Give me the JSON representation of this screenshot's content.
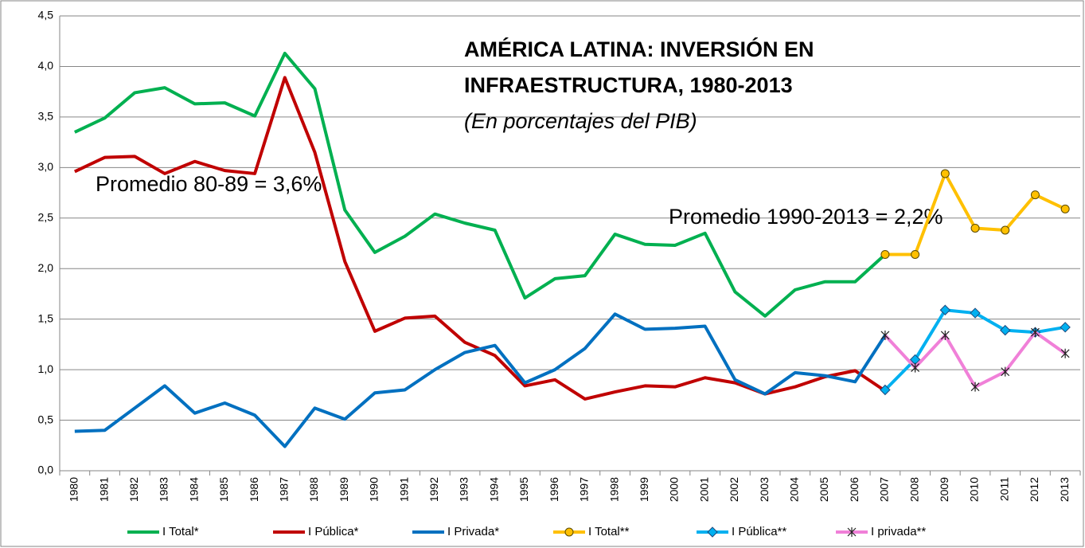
{
  "chart_data": {
    "type": "line",
    "title_lines": [
      "AMÉRICA LATINA: INVERSIÓN EN",
      "INFRAESTRUCTURA, 1980-2013"
    ],
    "subtitle": "(En porcentajes del PIB)",
    "annotations": [
      "Promedio 80-89 = 3,6%",
      "Promedio 1990-2013 = 2,2%"
    ],
    "categories": [
      "1980",
      "1981",
      "1982",
      "1983",
      "1984",
      "1985",
      "1986",
      "1987",
      "1988",
      "1989",
      "1990",
      "1991",
      "1992",
      "1993",
      "1994",
      "1995",
      "1996",
      "1997",
      "1998",
      "1999",
      "2000",
      "2001",
      "2002",
      "2003",
      "2004",
      "2005",
      "2006",
      "2007",
      "2008",
      "2009",
      "2010",
      "2011",
      "2012",
      "2013"
    ],
    "series": [
      {
        "name": "I Total*",
        "color": "#00b050",
        "marker": "none",
        "values": [
          3.35,
          3.49,
          3.74,
          3.79,
          3.63,
          3.64,
          3.51,
          4.13,
          3.78,
          2.58,
          2.16,
          2.32,
          2.54,
          2.45,
          2.38,
          1.71,
          1.9,
          1.93,
          2.34,
          2.24,
          2.23,
          2.35,
          1.77,
          1.53,
          1.79,
          1.87,
          1.87,
          2.14,
          null,
          null,
          null,
          null,
          null,
          null
        ]
      },
      {
        "name": "I Pública*",
        "color": "#c00000",
        "marker": "none",
        "values": [
          2.96,
          3.1,
          3.11,
          2.94,
          3.06,
          2.97,
          2.94,
          3.89,
          3.15,
          2.07,
          1.38,
          1.51,
          1.53,
          1.27,
          1.14,
          0.84,
          0.9,
          0.71,
          0.78,
          0.84,
          0.83,
          0.92,
          0.87,
          0.76,
          0.83,
          0.93,
          0.99,
          0.79,
          null,
          null,
          null,
          null,
          null,
          null
        ]
      },
      {
        "name": "I Privada*",
        "color": "#0070c0",
        "marker": "none",
        "values": [
          0.39,
          0.4,
          0.62,
          0.84,
          0.57,
          0.67,
          0.55,
          0.24,
          0.62,
          0.51,
          0.77,
          0.8,
          1.0,
          1.17,
          1.24,
          0.87,
          1.0,
          1.21,
          1.55,
          1.4,
          1.41,
          1.43,
          0.9,
          0.76,
          0.97,
          0.94,
          0.88,
          1.34,
          null,
          null,
          null,
          null,
          null,
          null
        ]
      },
      {
        "name": "I Total**",
        "color": "#ffc000",
        "marker": "circle",
        "values": [
          null,
          null,
          null,
          null,
          null,
          null,
          null,
          null,
          null,
          null,
          null,
          null,
          null,
          null,
          null,
          null,
          null,
          null,
          null,
          null,
          null,
          null,
          null,
          null,
          null,
          null,
          null,
          2.14,
          2.14,
          2.94,
          2.4,
          2.38,
          2.73,
          2.59
        ]
      },
      {
        "name": "I Pública**",
        "color": "#00b0f0",
        "marker": "diamond",
        "values": [
          null,
          null,
          null,
          null,
          null,
          null,
          null,
          null,
          null,
          null,
          null,
          null,
          null,
          null,
          null,
          null,
          null,
          null,
          null,
          null,
          null,
          null,
          null,
          null,
          null,
          null,
          null,
          0.8,
          1.1,
          1.59,
          1.56,
          1.39,
          1.37,
          1.42
        ]
      },
      {
        "name": "I privada**",
        "color": "#f080d8",
        "marker": "star",
        "values": [
          null,
          null,
          null,
          null,
          null,
          null,
          null,
          null,
          null,
          null,
          null,
          null,
          null,
          null,
          null,
          null,
          null,
          null,
          null,
          null,
          null,
          null,
          null,
          null,
          null,
          null,
          null,
          1.34,
          1.02,
          1.34,
          0.83,
          0.98,
          1.37,
          1.16
        ]
      }
    ],
    "ylim": [
      0,
      4.5
    ],
    "yticks": [
      {
        "value": 0,
        "label": "0,0"
      },
      {
        "value": 0.5,
        "label": "0,5"
      },
      {
        "value": 1,
        "label": "1,0"
      },
      {
        "value": 1.5,
        "label": "1,5"
      },
      {
        "value": 2,
        "label": "2,0"
      },
      {
        "value": 2.5,
        "label": "2,5"
      },
      {
        "value": 3,
        "label": "3,0"
      },
      {
        "value": 3.5,
        "label": "3,5"
      },
      {
        "value": 4,
        "label": "4,0"
      },
      {
        "value": 4.5,
        "label": "4,5"
      }
    ],
    "grid": true,
    "legend": "bottom"
  }
}
